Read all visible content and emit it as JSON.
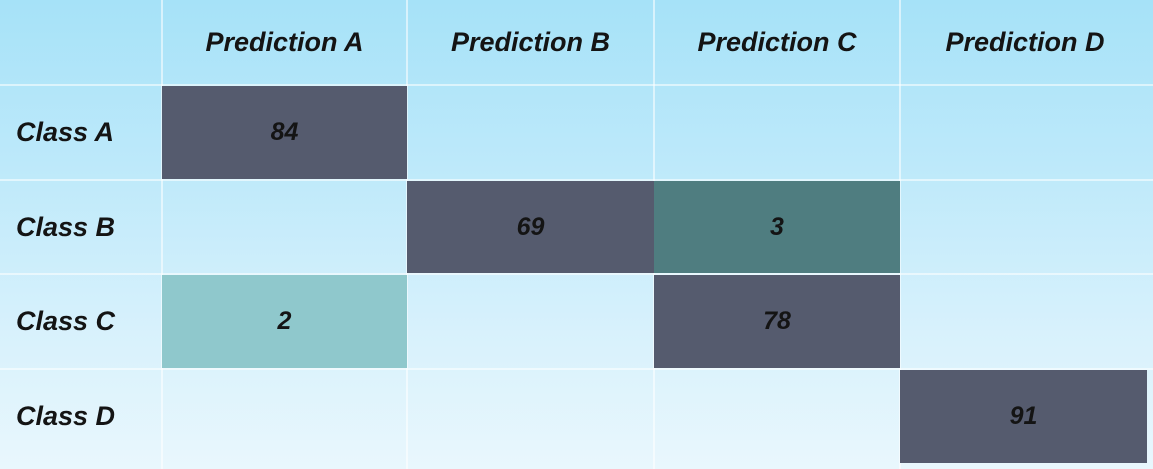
{
  "chart_data": {
    "type": "heatmap",
    "columns": [
      "Prediction A",
      "Prediction B",
      "Prediction C",
      "Prediction D"
    ],
    "rows": [
      "Class A",
      "Class B",
      "Class C",
      "Class D"
    ],
    "values": [
      [
        84,
        null,
        null,
        null
      ],
      [
        null,
        69,
        3,
        null
      ],
      [
        2,
        null,
        78,
        null
      ],
      [
        null,
        null,
        null,
        91
      ]
    ],
    "cell_labels": [
      [
        "84",
        "",
        "",
        ""
      ],
      [
        "",
        "69",
        "3",
        ""
      ],
      [
        "2",
        "",
        "78",
        ""
      ],
      [
        "",
        "",
        "",
        "91"
      ]
    ]
  },
  "colors": {
    "high": "#555b6e",
    "medium": "#4f7d80",
    "low": "#8fc8cc",
    "background_top": "#a6e2f8",
    "background_bottom": "#e9f7fd"
  }
}
